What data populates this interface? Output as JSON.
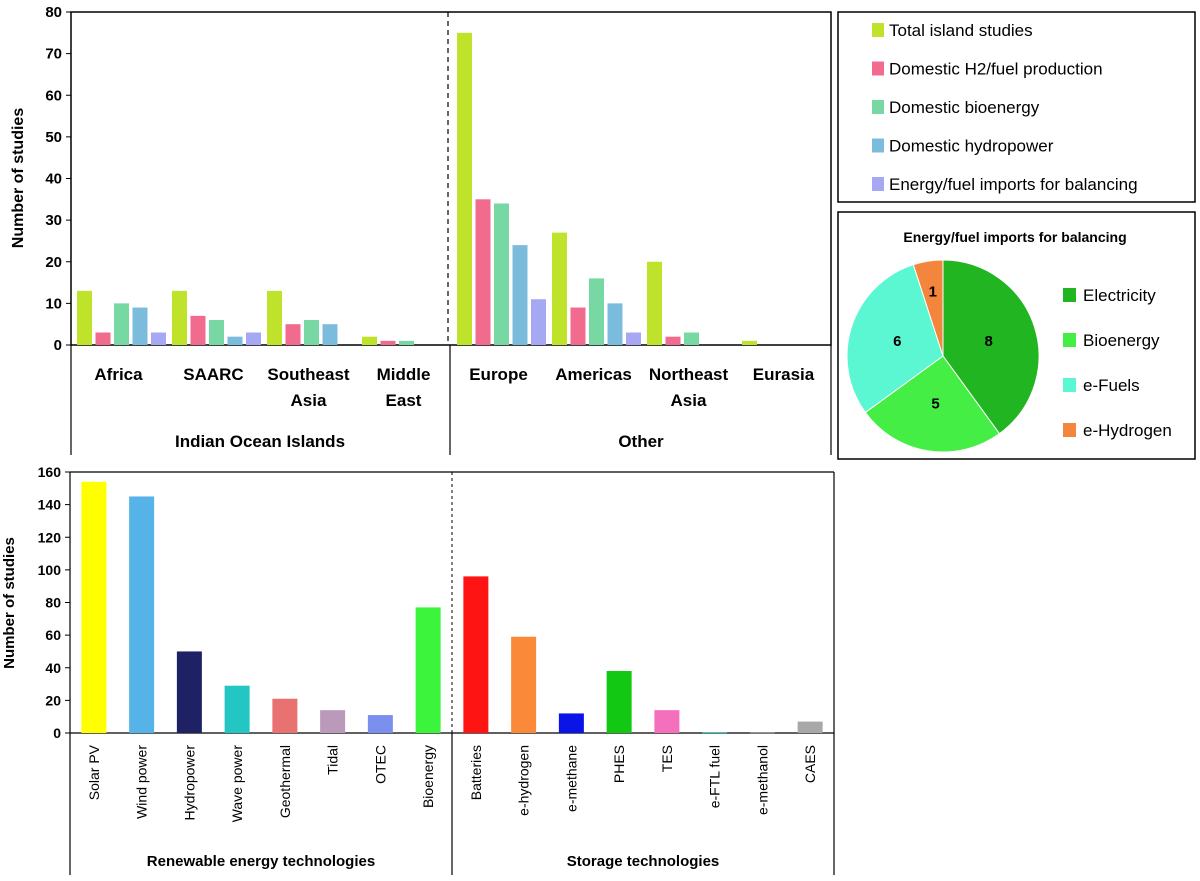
{
  "charts": {
    "top": {
      "chart_data": {
        "type": "bar",
        "ylabel": "Number of studies",
        "ylim": [
          0,
          80
        ],
        "yticks": [
          0,
          10,
          20,
          30,
          40,
          50,
          60,
          70,
          80
        ],
        "series": [
          {
            "name": "Total island studies",
            "color": "#bfe32a"
          },
          {
            "name": "Domestic H2/fuel production",
            "color": "#f06b8e"
          },
          {
            "name": "Domestic bioenergy",
            "color": "#78d8a4"
          },
          {
            "name": "Domestic hydropower",
            "color": "#7bbcdc"
          },
          {
            "name": "Energy/fuel imports for balancing",
            "color": "#a7a8f4"
          }
        ],
        "categories": [
          {
            "label": [
              "Africa"
            ],
            "values": [
              13,
              3,
              10,
              9,
              3
            ]
          },
          {
            "label": [
              "SAARC"
            ],
            "values": [
              13,
              7,
              6,
              2,
              3
            ]
          },
          {
            "label": [
              "Southeast",
              "Asia"
            ],
            "values": [
              13,
              5,
              6,
              5,
              0
            ]
          },
          {
            "label": [
              "Middle",
              "East"
            ],
            "values": [
              2,
              1,
              1,
              0,
              0
            ]
          },
          {
            "label": [
              "Europe"
            ],
            "values": [
              75,
              35,
              34,
              24,
              11
            ]
          },
          {
            "label": [
              "Americas"
            ],
            "values": [
              27,
              9,
              16,
              10,
              3
            ]
          },
          {
            "label": [
              "Northeast",
              "Asia"
            ],
            "values": [
              20,
              2,
              3,
              0,
              0
            ]
          },
          {
            "label": [
              "Eurasia"
            ],
            "values": [
              1,
              0,
              0,
              0,
              0
            ]
          }
        ],
        "groups": [
          {
            "label": "Indian Ocean Islands",
            "count": 4
          },
          {
            "label": "Other",
            "count": 4
          }
        ]
      }
    },
    "pie": {
      "chart_data": {
        "type": "pie",
        "title": "Energy/fuel imports for balancing",
        "slices": [
          {
            "label": "Electricity",
            "value": 8,
            "color": "#21b522"
          },
          {
            "label": "Bioenergy",
            "value": 5,
            "color": "#44ee44"
          },
          {
            "label": "e-Fuels",
            "value": 6,
            "color": "#5bf6d2"
          },
          {
            "label": "e-Hydrogen",
            "value": 1,
            "color": "#f4853c"
          }
        ]
      }
    },
    "bottom": {
      "chart_data": {
        "type": "bar",
        "ylabel": "Number of studies",
        "ylim": [
          0,
          160
        ],
        "yticks": [
          0,
          20,
          40,
          60,
          80,
          100,
          120,
          140,
          160
        ],
        "categories": [
          {
            "label": "Solar PV",
            "value": 154,
            "color": "#ffff00"
          },
          {
            "label": "Wind power",
            "value": 145,
            "color": "#55b3e8"
          },
          {
            "label": "Hydropower",
            "value": 50,
            "color": "#1e2164"
          },
          {
            "label": "Wave power",
            "value": 29,
            "color": "#23c6c2"
          },
          {
            "label": "Geothermal",
            "value": 21,
            "color": "#e87272"
          },
          {
            "label": "Tidal",
            "value": 14,
            "color": "#bb99bb"
          },
          {
            "label": "OTEC",
            "value": 11,
            "color": "#7b90ee"
          },
          {
            "label": "Bioenergy",
            "value": 77,
            "color": "#3cf43c"
          },
          {
            "label": "Batteries",
            "value": 96,
            "color": "#ff1414"
          },
          {
            "label": "e-hydrogen",
            "value": 59,
            "color": "#fa8a3a"
          },
          {
            "label": "e-methane",
            "value": 12,
            "color": "#0a14e6"
          },
          {
            "label": "PHES",
            "value": 38,
            "color": "#12c812"
          },
          {
            "label": "TES",
            "value": 14,
            "color": "#f46fbc"
          },
          {
            "label": "e-FTL fuel",
            "value": 0.5,
            "color": "#30c0b4"
          },
          {
            "label": "e-methanol",
            "value": 0.5,
            "color": "#888888"
          },
          {
            "label": "CAES",
            "value": 7,
            "color": "#a8a8a8"
          }
        ],
        "groups": [
          {
            "label": "Renewable energy technologies",
            "count": 8
          },
          {
            "label": "Storage technologies",
            "count": 8
          }
        ]
      }
    }
  }
}
